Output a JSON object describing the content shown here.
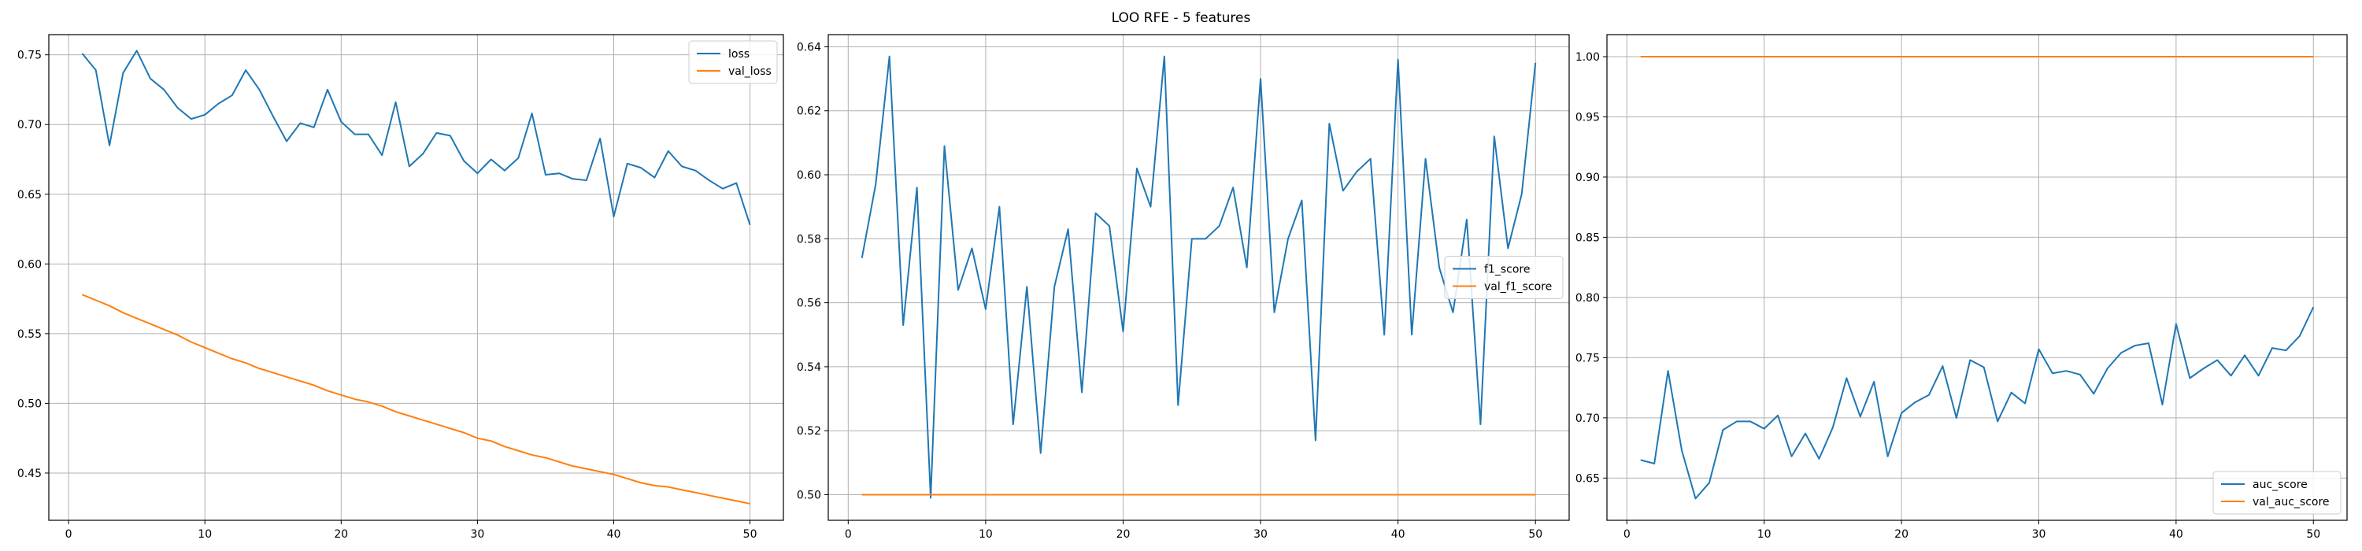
{
  "figure_title": "LOO RFE - 5 features",
  "colors": {
    "series0": "#1f77b4",
    "series1": "#ff7f0e",
    "grid": "#b0b0b0",
    "axis": "#000000",
    "legend_border": "#cccccc"
  },
  "chart_data": [
    {
      "type": "line",
      "title": "",
      "xlabel": "",
      "ylabel": "",
      "grid": true,
      "legend_position": "upper right",
      "xlim": [
        -1.45,
        52.45
      ],
      "ylim": [
        0.4161,
        0.7645
      ],
      "xticks": [
        0,
        10,
        20,
        30,
        40,
        50
      ],
      "xtick_labels": [
        "0",
        "10",
        "20",
        "30",
        "40",
        "50"
      ],
      "yticks": [
        0.45,
        0.5,
        0.55,
        0.6,
        0.65,
        0.7,
        0.75
      ],
      "ytick_labels": [
        "0.45",
        "0.50",
        "0.55",
        "0.60",
        "0.65",
        "0.70",
        "0.75"
      ],
      "x": [
        1,
        2,
        3,
        4,
        5,
        6,
        7,
        8,
        9,
        10,
        11,
        12,
        13,
        14,
        15,
        16,
        17,
        18,
        19,
        20,
        21,
        22,
        23,
        24,
        25,
        26,
        27,
        28,
        29,
        30,
        31,
        32,
        33,
        34,
        35,
        36,
        37,
        38,
        39,
        40,
        41,
        42,
        43,
        44,
        45,
        46,
        47,
        48,
        49,
        50
      ],
      "series": [
        {
          "name": "loss",
          "values": [
            0.751,
            0.739,
            0.685,
            0.737,
            0.753,
            0.733,
            0.725,
            0.712,
            0.704,
            0.707,
            0.715,
            0.721,
            0.739,
            0.725,
            0.706,
            0.688,
            0.701,
            0.698,
            0.725,
            0.702,
            0.693,
            0.693,
            0.678,
            0.716,
            0.67,
            0.679,
            0.694,
            0.692,
            0.674,
            0.665,
            0.675,
            0.667,
            0.676,
            0.708,
            0.664,
            0.665,
            0.661,
            0.66,
            0.69,
            0.634,
            0.672,
            0.669,
            0.662,
            0.681,
            0.67,
            0.667,
            0.66,
            0.654,
            0.658,
            0.628
          ]
        },
        {
          "name": "val_loss",
          "values": [
            0.578,
            0.574,
            0.57,
            0.565,
            0.561,
            0.557,
            0.553,
            0.549,
            0.544,
            0.54,
            0.536,
            0.532,
            0.529,
            0.525,
            0.522,
            0.519,
            0.516,
            0.513,
            0.509,
            0.506,
            0.503,
            0.501,
            0.498,
            0.494,
            0.491,
            0.488,
            0.485,
            0.482,
            0.479,
            0.475,
            0.473,
            0.469,
            0.466,
            0.463,
            0.461,
            0.458,
            0.455,
            0.453,
            0.451,
            0.449,
            0.446,
            0.443,
            0.441,
            0.44,
            0.438,
            0.436,
            0.434,
            0.432,
            0.43,
            0.428
          ]
        }
      ]
    },
    {
      "type": "line",
      "title": "",
      "xlabel": "",
      "ylabel": "",
      "grid": true,
      "legend_position": "center right",
      "xlim": [
        -1.45,
        52.45
      ],
      "ylim": [
        0.492,
        0.6438
      ],
      "xticks": [
        0,
        10,
        20,
        30,
        40,
        50
      ],
      "xtick_labels": [
        "0",
        "10",
        "20",
        "30",
        "40",
        "50"
      ],
      "yticks": [
        0.5,
        0.52,
        0.54,
        0.56,
        0.58,
        0.6,
        0.62,
        0.64
      ],
      "ytick_labels": [
        "0.50",
        "0.52",
        "0.54",
        "0.56",
        "0.58",
        "0.60",
        "0.62",
        "0.64"
      ],
      "x": [
        1,
        2,
        3,
        4,
        5,
        6,
        7,
        8,
        9,
        10,
        11,
        12,
        13,
        14,
        15,
        16,
        17,
        18,
        19,
        20,
        21,
        22,
        23,
        24,
        25,
        26,
        27,
        28,
        29,
        30,
        31,
        32,
        33,
        34,
        35,
        36,
        37,
        38,
        39,
        40,
        41,
        42,
        43,
        44,
        45,
        46,
        47,
        48,
        49,
        50
      ],
      "series": [
        {
          "name": "f1_score",
          "values": [
            0.574,
            0.597,
            0.637,
            0.553,
            0.596,
            0.499,
            0.609,
            0.564,
            0.577,
            0.558,
            0.59,
            0.522,
            0.565,
            0.513,
            0.565,
            0.583,
            0.532,
            0.588,
            0.584,
            0.551,
            0.602,
            0.59,
            0.637,
            0.528,
            0.58,
            0.58,
            0.584,
            0.596,
            0.571,
            0.63,
            0.557,
            0.58,
            0.592,
            0.517,
            0.616,
            0.595,
            0.601,
            0.605,
            0.55,
            0.636,
            0.55,
            0.605,
            0.571,
            0.557,
            0.586,
            0.522,
            0.612,
            0.577,
            0.594,
            0.635
          ]
        },
        {
          "name": "val_f1_score",
          "values": [
            0.5,
            0.5,
            0.5,
            0.5,
            0.5,
            0.5,
            0.5,
            0.5,
            0.5,
            0.5,
            0.5,
            0.5,
            0.5,
            0.5,
            0.5,
            0.5,
            0.5,
            0.5,
            0.5,
            0.5,
            0.5,
            0.5,
            0.5,
            0.5,
            0.5,
            0.5,
            0.5,
            0.5,
            0.5,
            0.5,
            0.5,
            0.5,
            0.5,
            0.5,
            0.5,
            0.5,
            0.5,
            0.5,
            0.5,
            0.5,
            0.5,
            0.5,
            0.5,
            0.5,
            0.5,
            0.5,
            0.5,
            0.5,
            0.5,
            0.5
          ]
        }
      ]
    },
    {
      "type": "line",
      "title": "",
      "xlabel": "",
      "ylabel": "",
      "grid": true,
      "legend_position": "lower right",
      "xlim": [
        -1.45,
        52.45
      ],
      "ylim": [
        0.6149,
        1.0183
      ],
      "xticks": [
        0,
        10,
        20,
        30,
        40,
        50
      ],
      "xtick_labels": [
        "0",
        "10",
        "20",
        "30",
        "40",
        "50"
      ],
      "yticks": [
        0.65,
        0.7,
        0.75,
        0.8,
        0.85,
        0.9,
        0.95,
        1.0
      ],
      "ytick_labels": [
        "0.65",
        "0.70",
        "0.75",
        "0.80",
        "0.85",
        "0.90",
        "0.95",
        "1.00"
      ],
      "x": [
        1,
        2,
        3,
        4,
        5,
        6,
        7,
        8,
        9,
        10,
        11,
        12,
        13,
        14,
        15,
        16,
        17,
        18,
        19,
        20,
        21,
        22,
        23,
        24,
        25,
        26,
        27,
        28,
        29,
        30,
        31,
        32,
        33,
        34,
        35,
        36,
        37,
        38,
        39,
        40,
        41,
        42,
        43,
        44,
        45,
        46,
        47,
        48,
        49,
        50
      ],
      "series": [
        {
          "name": "auc_score",
          "values": [
            0.665,
            0.662,
            0.739,
            0.673,
            0.633,
            0.646,
            0.69,
            0.697,
            0.697,
            0.691,
            0.702,
            0.668,
            0.687,
            0.666,
            0.692,
            0.733,
            0.701,
            0.73,
            0.668,
            0.704,
            0.713,
            0.719,
            0.743,
            0.7,
            0.748,
            0.742,
            0.697,
            0.721,
            0.712,
            0.757,
            0.737,
            0.739,
            0.736,
            0.72,
            0.741,
            0.754,
            0.76,
            0.762,
            0.711,
            0.778,
            0.733,
            0.741,
            0.748,
            0.735,
            0.752,
            0.735,
            0.758,
            0.756,
            0.768,
            0.792
          ]
        },
        {
          "name": "val_auc_score",
          "values": [
            1.0,
            1.0,
            1.0,
            1.0,
            1.0,
            1.0,
            1.0,
            1.0,
            1.0,
            1.0,
            1.0,
            1.0,
            1.0,
            1.0,
            1.0,
            1.0,
            1.0,
            1.0,
            1.0,
            1.0,
            1.0,
            1.0,
            1.0,
            1.0,
            1.0,
            1.0,
            1.0,
            1.0,
            1.0,
            1.0,
            1.0,
            1.0,
            1.0,
            1.0,
            1.0,
            1.0,
            1.0,
            1.0,
            1.0,
            1.0,
            1.0,
            1.0,
            1.0,
            1.0,
            1.0,
            1.0,
            1.0,
            1.0,
            1.0,
            1.0
          ]
        }
      ]
    }
  ]
}
